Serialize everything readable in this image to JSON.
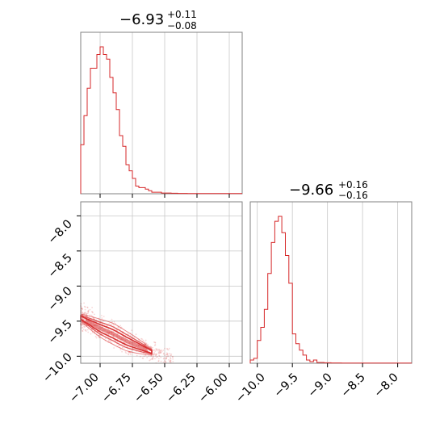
{
  "figure": {
    "type": "corner-plot",
    "accent_color": "#d62728",
    "grid": true,
    "grid_color": "#c8c8c8",
    "frame_color": "#808080"
  },
  "chart_data": [
    {
      "type": "histogram",
      "panel": "top-left marginal",
      "title": {
        "median": "−6.93",
        "plus": "+0.11",
        "minus": "−0.08"
      },
      "xlim": [
        -7.15,
        -5.9
      ],
      "xticks": [
        -7.0,
        -6.75,
        -6.5,
        -6.25,
        -6.0
      ],
      "tick_labels_shown": false,
      "bin_width": 0.025,
      "bin_start": -7.15,
      "counts": [
        0.32,
        0.51,
        0.69,
        0.82,
        0.82,
        0.91,
        0.96,
        0.91,
        0.88,
        0.76,
        0.66,
        0.55,
        0.38,
        0.31,
        0.19,
        0.15,
        0.1,
        0.05,
        0.04,
        0.04,
        0.03,
        0.02,
        0.01,
        0.01,
        0.01,
        0.005,
        0.005,
        0.005,
        0.003,
        0.003,
        0.002,
        0.002,
        0.002,
        0.001,
        0.001,
        0.001,
        0.001,
        0.001,
        0.001,
        0.001,
        0.001,
        0.001,
        0.001,
        0.001,
        0.001,
        0.001,
        0.001,
        0.001,
        0.001,
        0.001
      ]
    },
    {
      "type": "scatter-contour",
      "panel": "bottom-left joint",
      "xlim": [
        -7.15,
        -5.9
      ],
      "ylim": [
        -10.1,
        -7.8
      ],
      "xticks": [
        -7.0,
        -6.75,
        -6.5,
        -6.25,
        -6.0
      ],
      "xtick_labels": [
        "−7.00",
        "−6.75",
        "−6.50",
        "−6.25",
        "−6.00"
      ],
      "yticks": [
        -8.0,
        -8.5,
        -9.0,
        -9.5,
        -10.0
      ],
      "ytick_labels": [
        "−8.0",
        "−8.5",
        "−9.0",
        "−9.5",
        "−10.0"
      ],
      "density_ridge": {
        "x": [
          -7.15,
          -7.0,
          -6.9,
          -6.8,
          -6.7,
          -6.6,
          -6.5
        ],
        "y": [
          -9.45,
          -9.6,
          -9.68,
          -9.78,
          -9.86,
          -9.94,
          -10.0
        ]
      },
      "contour_level_widths": [
        0.06,
        0.1,
        0.15
      ],
      "point_cloud_width": 0.25
    },
    {
      "type": "histogram",
      "panel": "bottom-right marginal",
      "title": {
        "median": "−9.66",
        "plus": "+0.16",
        "minus": "−0.16"
      },
      "xlim": [
        -10.1,
        -7.8
      ],
      "xticks": [
        -10.0,
        -9.5,
        -9.0,
        -8.5,
        -8.0
      ],
      "xtick_labels": [
        "−10.0",
        "−9.5",
        "−9.0",
        "−8.5",
        "−8.0"
      ],
      "bin_width": 0.05,
      "bin_start": -10.1,
      "counts": [
        0.02,
        0.03,
        0.14,
        0.22,
        0.33,
        0.55,
        0.74,
        0.87,
        0.9,
        0.8,
        0.66,
        0.49,
        0.18,
        0.12,
        0.08,
        0.05,
        0.02,
        0.01,
        0.02,
        0.005,
        0.005,
        0.003,
        0.003,
        0.002,
        0.002,
        0.002,
        0.001,
        0.001,
        0.001,
        0.001,
        0.001,
        0.001,
        0.001,
        0.001,
        0.001,
        0.001,
        0.001,
        0.001,
        0.001,
        0.001,
        0.001,
        0.001,
        0.001,
        0.001,
        0.001,
        0.001
      ]
    }
  ]
}
